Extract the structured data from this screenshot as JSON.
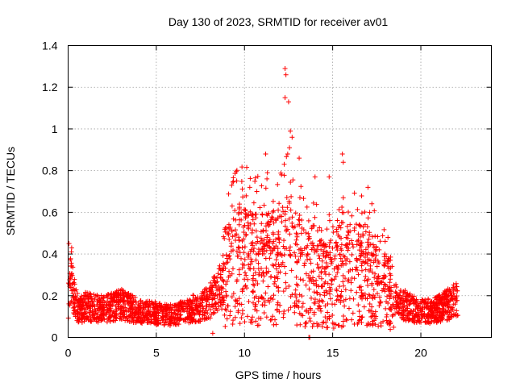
{
  "chart_data": {
    "type": "scatter",
    "title": "Day 130 of 2023, SRMTID for receiver av01",
    "xlabel": "GPS time / hours",
    "ylabel": "SRMTID / TECUs",
    "xlim": [
      0,
      24
    ],
    "ylim": [
      0,
      1.4
    ],
    "xticks": [
      "0",
      "5",
      "10",
      "15",
      "20"
    ],
    "xtick_values": [
      0,
      5,
      10,
      15,
      20
    ],
    "yticks": [
      "0",
      "0.2",
      "0.4",
      "0.6",
      "0.8",
      "1",
      "1.2",
      "1.4"
    ],
    "ytick_values": [
      0,
      0.2,
      0.4,
      0.6,
      0.8,
      1.0,
      1.2,
      1.4
    ],
    "grid": true,
    "marker": "plus",
    "marker_color": "#ff0000",
    "profile": {
      "description": "approximate envelope of the point cloud (hours, TECU)",
      "x": [
        0,
        0.15,
        0.3,
        0.6,
        1,
        2,
        3,
        4,
        5,
        6,
        7,
        7.5,
        8,
        8.5,
        9,
        9.5,
        10,
        10.5,
        11,
        11.5,
        12,
        12.5,
        13,
        13.5,
        14,
        14.5,
        15,
        15.5,
        16,
        16.5,
        17,
        17.5,
        18,
        18.5,
        19,
        19.5,
        20,
        20.5,
        21,
        21.5,
        22
      ],
      "y_mid": [
        0.15,
        0.3,
        0.2,
        0.12,
        0.14,
        0.13,
        0.15,
        0.12,
        0.11,
        0.1,
        0.13,
        0.14,
        0.16,
        0.22,
        0.28,
        0.32,
        0.33,
        0.3,
        0.3,
        0.3,
        0.32,
        0.35,
        0.3,
        0.26,
        0.25,
        0.24,
        0.23,
        0.25,
        0.26,
        0.28,
        0.27,
        0.23,
        0.2,
        0.17,
        0.15,
        0.13,
        0.12,
        0.12,
        0.13,
        0.15,
        0.17
      ]
    },
    "highlights": [
      {
        "x": 12.3,
        "y": 1.29
      },
      {
        "x": 12.35,
        "y": 1.26
      },
      {
        "x": 12.3,
        "y": 1.15
      },
      {
        "x": 12.5,
        "y": 1.13
      },
      {
        "x": 12.6,
        "y": 0.99
      },
      {
        "x": 12.7,
        "y": 0.96
      },
      {
        "x": 12.55,
        "y": 0.91
      },
      {
        "x": 12.45,
        "y": 0.88
      },
      {
        "x": 13.1,
        "y": 0.86
      },
      {
        "x": 11.2,
        "y": 0.88
      },
      {
        "x": 15.55,
        "y": 0.88
      },
      {
        "x": 15.6,
        "y": 0.84
      },
      {
        "x": 11.3,
        "y": 0.79
      },
      {
        "x": 14.0,
        "y": 0.77
      },
      {
        "x": 14.8,
        "y": 0.77
      },
      {
        "x": 10.3,
        "y": 0.72
      },
      {
        "x": 17.0,
        "y": 0.72
      },
      {
        "x": 10.7,
        "y": 0.7
      },
      {
        "x": 15.6,
        "y": 0.67
      },
      {
        "x": 17.1,
        "y": 0.6
      },
      {
        "x": 8.2,
        "y": 0.02
      },
      {
        "x": 13.7,
        "y": 0.0
      },
      {
        "x": 13.65,
        "y": 0.0
      },
      {
        "x": 0.05,
        "y": 0.45
      },
      {
        "x": 0.2,
        "y": 0.43
      }
    ]
  }
}
